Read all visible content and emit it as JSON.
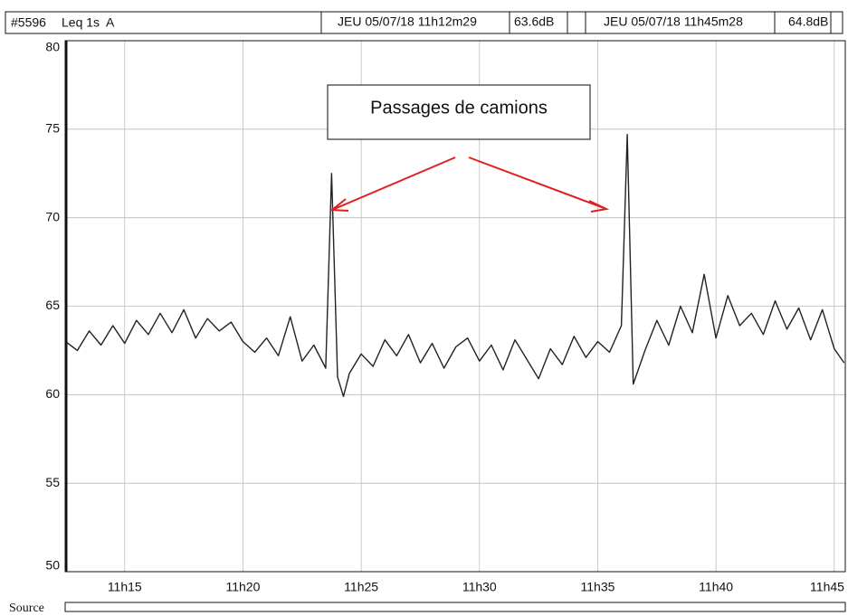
{
  "chart_data": {
    "type": "line",
    "header": {
      "id": "#5596",
      "measure": "Leq 1s  A",
      "start": "JEU 05/07/18 11h12m29",
      "start_level": "63.6dB",
      "end": "JEU 05/07/18 11h45m28",
      "end_level": "64.8dB"
    },
    "annotation": "Passages de camions",
    "source_label": "Source",
    "x": [
      "11h12m30",
      "11h13m00",
      "11h13m30",
      "11h14m00",
      "11h14m30",
      "11h15m00",
      "11h15m30",
      "11h16m00",
      "11h16m30",
      "11h17m00",
      "11h17m30",
      "11h18m00",
      "11h18m30",
      "11h19m00",
      "11h19m30",
      "11h20m00",
      "11h20m30",
      "11h21m00",
      "11h21m30",
      "11h22m00",
      "11h22m30",
      "11h23m00",
      "11h23m30",
      "11h23m45",
      "11h24m00",
      "11h24m15",
      "11h24m30",
      "11h25m00",
      "11h25m30",
      "11h26m00",
      "11h26m30",
      "11h27m00",
      "11h27m30",
      "11h28m00",
      "11h28m30",
      "11h29m00",
      "11h29m30",
      "11h30m00",
      "11h30m30",
      "11h31m00",
      "11h31m30",
      "11h32m00",
      "11h32m30",
      "11h33m00",
      "11h33m30",
      "11h34m00",
      "11h34m30",
      "11h35m00",
      "11h35m30",
      "11h36m00",
      "11h36m15",
      "11h36m30",
      "11h37m00",
      "11h37m30",
      "11h38m00",
      "11h38m30",
      "11h39m00",
      "11h39m30",
      "11h40m00",
      "11h40m30",
      "11h41m00",
      "11h41m30",
      "11h42m00",
      "11h42m30",
      "11h43m00",
      "11h43m30",
      "11h44m00",
      "11h44m30",
      "11h45m00",
      "11h45m25"
    ],
    "values": [
      63.0,
      62.5,
      63.6,
      62.8,
      63.9,
      62.9,
      64.2,
      63.4,
      64.6,
      63.5,
      64.8,
      63.2,
      64.3,
      63.6,
      64.1,
      63.0,
      62.4,
      63.2,
      62.2,
      64.4,
      61.9,
      62.8,
      61.5,
      72.5,
      61.0,
      59.9,
      61.2,
      62.3,
      61.6,
      63.1,
      62.2,
      63.4,
      61.8,
      62.9,
      61.5,
      62.7,
      63.2,
      61.9,
      62.8,
      61.4,
      63.1,
      62.0,
      60.9,
      62.6,
      61.7,
      63.3,
      62.1,
      63.0,
      62.4,
      63.9,
      74.7,
      60.6,
      62.5,
      64.2,
      62.8,
      65.0,
      63.5,
      66.8,
      63.2,
      65.6,
      63.9,
      64.6,
      63.4,
      65.3,
      63.7,
      64.9,
      63.1,
      64.8,
      62.6,
      61.8
    ],
    "color": "#222222",
    "xlim": [
      "11h12m29",
      "11h45m28"
    ],
    "xticks": [
      "11h15",
      "11h20",
      "11h25",
      "11h30",
      "11h35",
      "11h40",
      "11h45"
    ],
    "ylim": [
      50,
      80
    ],
    "yticks": [
      50,
      55,
      60,
      65,
      70,
      75,
      80
    ],
    "grid": true
  }
}
